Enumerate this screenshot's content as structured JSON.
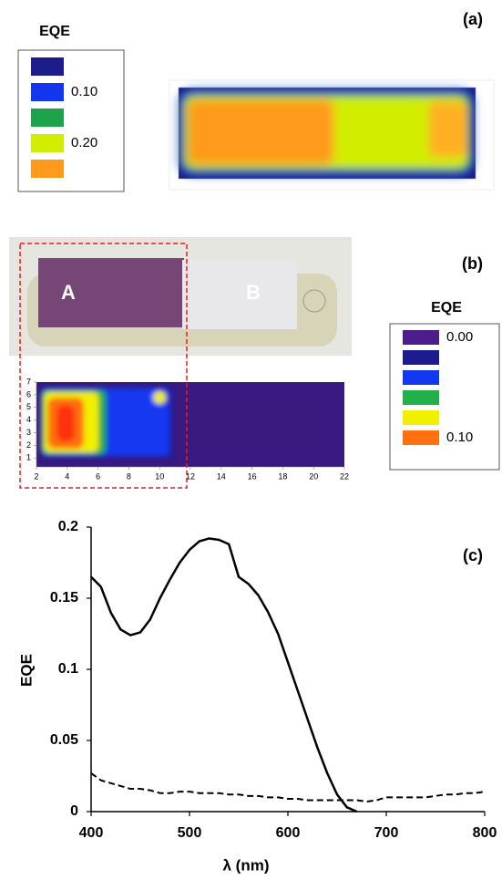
{
  "chart_data": [
    {
      "type": "heatmap",
      "label": "(a)",
      "legend_title": "EQE",
      "legend": [
        {
          "value": 0.05,
          "color": "#1c1c8a"
        },
        {
          "value": 0.1,
          "label": "0.10",
          "color": "#1436ee"
        },
        {
          "value": 0.15,
          "color": "#1ea24c"
        },
        {
          "value": 0.2,
          "label": "0.20",
          "color": "#d2ee00"
        },
        {
          "value": 0.25,
          "color": "#ff9a1c"
        }
      ]
    },
    {
      "type": "heatmap",
      "label": "(b)",
      "legend_title": "EQE",
      "regions": [
        "A",
        "B"
      ],
      "legend": [
        {
          "value": 0,
          "label": "0.00",
          "color": "#4a1c8c"
        },
        {
          "value": 0.02,
          "color": "#1c1c90"
        },
        {
          "value": 0.04,
          "color": "#1438f0"
        },
        {
          "value": 0.06,
          "color": "#22b04a"
        },
        {
          "value": 0.08,
          "color": "#f0f000"
        },
        {
          "value": 0.1,
          "label": "0.10",
          "color": "#ff7010"
        }
      ],
      "xlim": [
        2,
        22
      ],
      "xticks": [
        2,
        4,
        6,
        8,
        10,
        12,
        14,
        16,
        18,
        20,
        22
      ],
      "ylim": [
        0.3,
        7
      ],
      "yticks": [
        1,
        2,
        3,
        4,
        5,
        6,
        7
      ]
    },
    {
      "type": "line",
      "label": "(c)",
      "xlabel": "λ (nm)",
      "ylabel": "EQE",
      "xlim": [
        400,
        800
      ],
      "xticks": [
        400,
        500,
        600,
        700,
        800
      ],
      "ylim": [
        0,
        0.2
      ],
      "yticks": [
        0,
        0.05,
        0.1,
        0.15,
        0.2
      ],
      "x": [
        400,
        410,
        420,
        430,
        440,
        450,
        460,
        470,
        480,
        490,
        500,
        510,
        520,
        530,
        540,
        550,
        560,
        570,
        580,
        590,
        600,
        610,
        620,
        630,
        640,
        650,
        660,
        670,
        680,
        690,
        700,
        710,
        720,
        730,
        740,
        750,
        760,
        770,
        780,
        790,
        800
      ],
      "series": [
        {
          "color": "#000000",
          "dashed": false,
          "values": [
            0.165,
            0.158,
            0.14,
            0.128,
            0.124,
            0.126,
            0.135,
            0.15,
            0.163,
            0.175,
            0.184,
            0.19,
            0.192,
            0.191,
            0.188,
            0.165,
            0.16,
            0.152,
            0.14,
            0.125,
            0.105,
            0.085,
            0.065,
            0.045,
            0.027,
            0.012,
            0.003,
            0,
            null,
            null,
            null,
            null,
            null,
            null,
            null,
            null,
            null,
            null,
            null,
            null,
            null
          ]
        },
        {
          "color": "#000000",
          "dashed": true,
          "values": [
            0.027,
            0.022,
            0.02,
            0.018,
            0.016,
            0.016,
            0.015,
            0.013,
            0.013,
            0.014,
            0.014,
            0.013,
            0.013,
            0.013,
            0.012,
            0.012,
            0.011,
            0.011,
            0.01,
            0.01,
            0.009,
            0.009,
            0.008,
            0.008,
            0.008,
            0.008,
            0.008,
            0.008,
            0.007,
            0.008,
            0.01,
            0.01,
            0.01,
            0.01,
            0.01,
            0.011,
            0.012,
            0.012,
            0.013,
            0.013,
            0.014
          ]
        }
      ]
    }
  ]
}
